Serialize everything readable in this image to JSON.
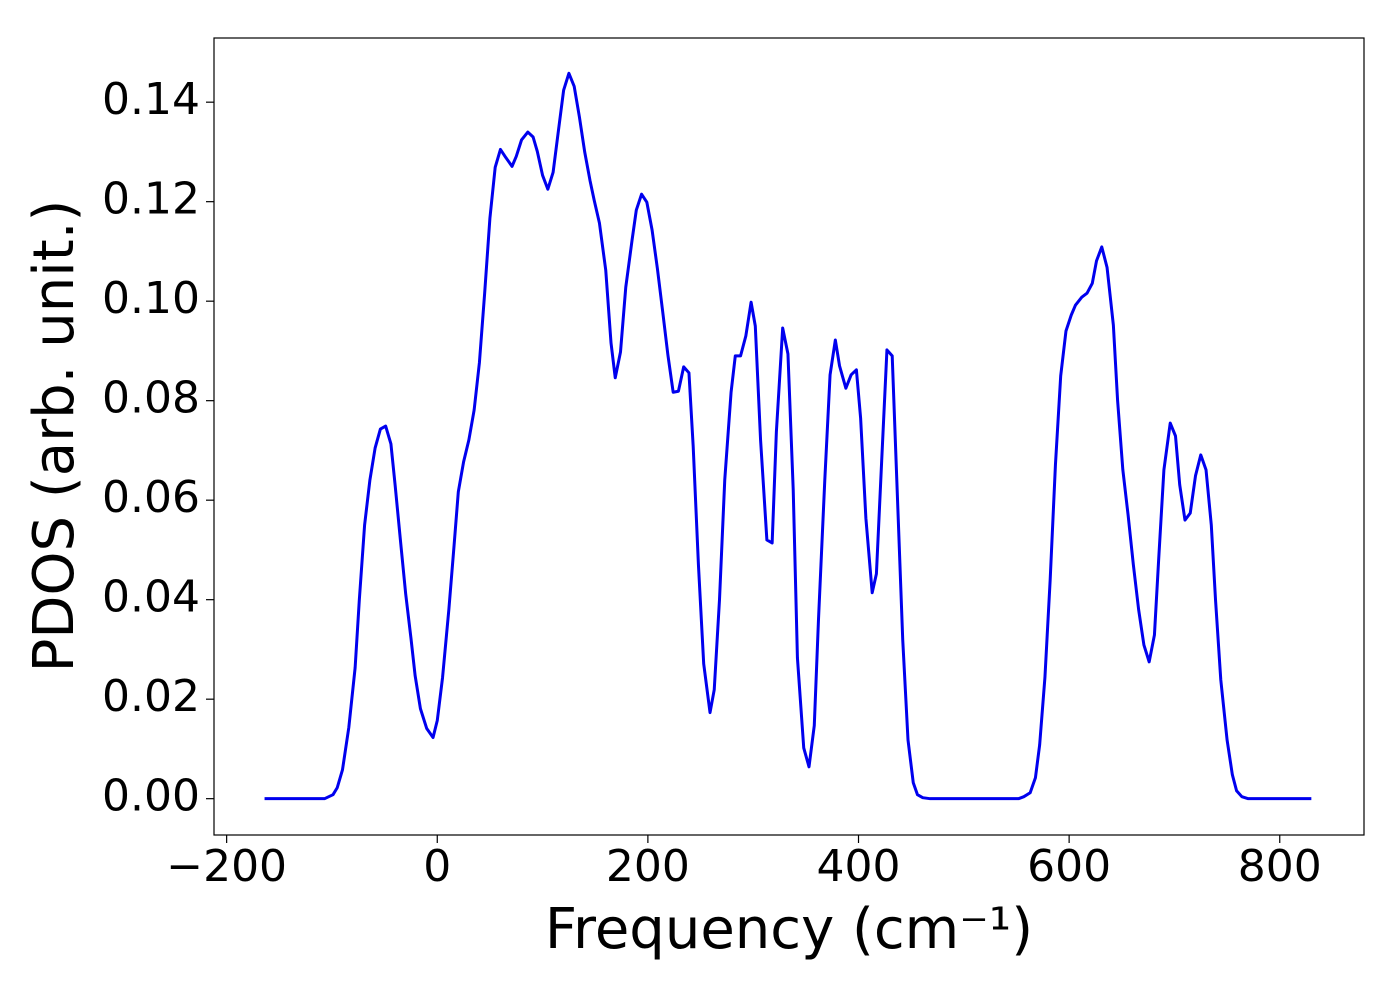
{
  "chart_data": {
    "type": "line",
    "xlabel": "Frequency (cm⁻¹)",
    "ylabel": "PDOS (arb. unit.)",
    "xlim": [
      -212,
      880
    ],
    "ylim": [
      -0.0073,
      0.1529
    ],
    "xticks": [
      {
        "value": -200,
        "label": "−200"
      },
      0,
      200,
      400,
      600,
      800
    ],
    "yticks": [
      {
        "value": 0,
        "label": "0.00"
      },
      {
        "value": 0.02,
        "label": "0.02"
      },
      {
        "value": 0.04,
        "label": "0.04"
      },
      {
        "value": 0.06,
        "label": "0.06"
      },
      {
        "value": 0.08,
        "label": "0.08"
      },
      {
        "value": 0.1,
        "label": "0.10"
      },
      {
        "value": 0.12,
        "label": "0.12"
      },
      {
        "value": 0.14,
        "label": "0.14"
      }
    ],
    "series": [
      {
        "color": "#0000ee",
        "x": [
          -164,
          -107,
          -99,
          -95,
          -90,
          -84,
          -78,
          -74,
          -69,
          -64,
          -59,
          -54,
          -49,
          -44,
          -40,
          -35,
          -30,
          -25,
          -21,
          -16,
          -10,
          -4,
          0,
          5,
          11,
          16,
          20,
          25,
          30,
          35,
          40,
          45,
          50,
          55,
          60,
          65,
          71,
          75,
          80,
          86,
          91,
          95,
          100,
          105,
          110,
          115,
          120,
          125,
          130,
          135,
          140,
          145,
          149,
          154,
          160,
          165,
          169,
          174,
          179,
          185,
          189,
          194,
          199,
          204,
          209,
          214,
          219,
          224,
          229,
          234,
          239,
          243,
          248,
          253,
          259,
          263,
          268,
          273,
          279,
          283,
          288,
          293,
          298,
          302,
          307,
          313,
          318,
          322,
          328,
          333,
          338,
          342,
          348,
          353,
          358,
          362,
          368,
          373,
          378,
          382,
          388,
          393,
          398,
          402,
          407,
          413,
          417,
          422,
          427,
          432,
          436,
          442,
          447,
          452,
          456,
          461,
          468,
          552,
          557,
          563,
          568,
          572,
          577,
          582,
          587,
          592,
          597,
          602,
          606,
          612,
          617,
          622,
          626,
          631,
          636,
          642,
          646,
          651,
          656,
          661,
          666,
          671,
          676,
          681,
          685,
          690,
          696,
          701,
          705,
          710,
          715,
          720,
          725,
          730,
          735,
          739,
          744,
          750,
          755,
          759,
          764,
          770,
          830
        ],
        "values": [
          0,
          0,
          0.0008,
          0.0022,
          0.0058,
          0.0143,
          0.0263,
          0.04,
          0.055,
          0.064,
          0.0705,
          0.0743,
          0.0749,
          0.0713,
          0.063,
          0.052,
          0.0412,
          0.0323,
          0.0247,
          0.0181,
          0.0141,
          0.0123,
          0.0157,
          0.0243,
          0.038,
          0.051,
          0.0617,
          0.0677,
          0.0721,
          0.0781,
          0.0876,
          0.1016,
          0.1167,
          0.1269,
          0.1305,
          0.1289,
          0.1271,
          0.1291,
          0.1324,
          0.134,
          0.133,
          0.1301,
          0.1253,
          0.1225,
          0.1259,
          0.1342,
          0.1424,
          0.1458,
          0.1432,
          0.137,
          0.13,
          0.1243,
          0.1203,
          0.1157,
          0.1062,
          0.0916,
          0.0846,
          0.0898,
          0.1028,
          0.1123,
          0.1183,
          0.1215,
          0.1199,
          0.1143,
          0.1066,
          0.098,
          0.0892,
          0.0817,
          0.0819,
          0.0868,
          0.0856,
          0.0709,
          0.047,
          0.0271,
          0.0173,
          0.0219,
          0.04,
          0.0641,
          0.0817,
          0.089,
          0.089,
          0.093,
          0.0998,
          0.095,
          0.0721,
          0.052,
          0.0514,
          0.0737,
          0.0946,
          0.0894,
          0.0621,
          0.0283,
          0.0102,
          0.0064,
          0.0147,
          0.036,
          0.0641,
          0.0852,
          0.0922,
          0.087,
          0.0825,
          0.0852,
          0.0862,
          0.0765,
          0.0564,
          0.0414,
          0.0452,
          0.0679,
          0.0902,
          0.089,
          0.0661,
          0.0319,
          0.0118,
          0.0032,
          0.0008,
          0.0002,
          0,
          0,
          0.0004,
          0.0012,
          0.0042,
          0.0108,
          0.0243,
          0.044,
          0.0671,
          0.085,
          0.094,
          0.0972,
          0.0992,
          0.1008,
          0.1016,
          0.1036,
          0.1081,
          0.1109,
          0.1068,
          0.0952,
          0.0801,
          0.0661,
          0.057,
          0.047,
          0.038,
          0.0309,
          0.0275,
          0.0329,
          0.048,
          0.0661,
          0.0755,
          0.0729,
          0.0631,
          0.056,
          0.0574,
          0.0649,
          0.0691,
          0.0661,
          0.055,
          0.04,
          0.0239,
          0.0118,
          0.0048,
          0.0016,
          0.0004,
          0,
          0
        ]
      }
    ]
  }
}
